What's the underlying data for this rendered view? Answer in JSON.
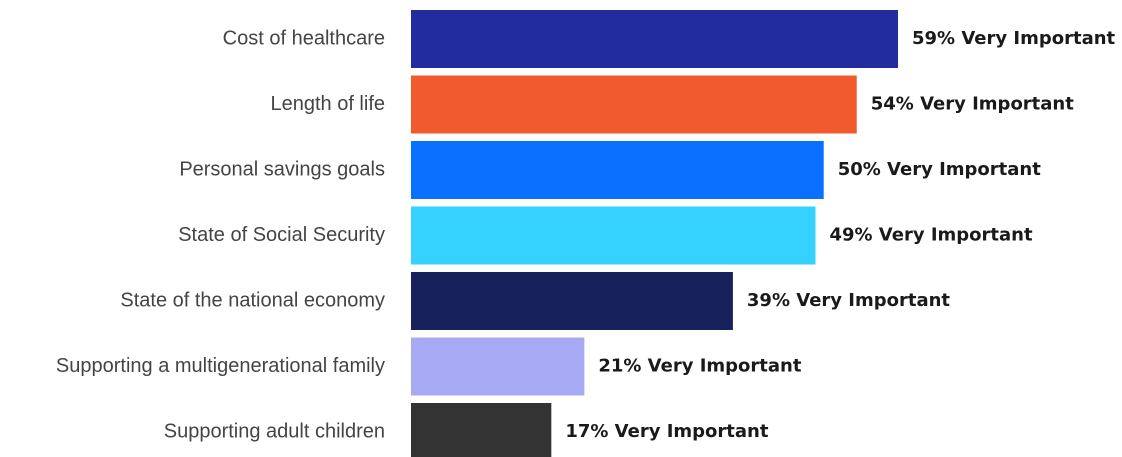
{
  "chart_data": {
    "type": "bar",
    "orientation": "horizontal",
    "categories": [
      "Cost of healthcare",
      "Length of life",
      "Personal savings goals",
      "State of Social Security",
      "State of the national economy",
      "Supporting a multigenerational family",
      "Supporting adult children"
    ],
    "values": [
      59,
      54,
      50,
      49,
      39,
      21,
      17
    ],
    "value_labels": [
      "59% Very Important",
      "54% Very Important",
      "50% Very Important",
      "49% Very Important",
      "39% Very Important",
      "21% Very Important",
      "17% Very Important"
    ],
    "colors": [
      "#232c9e",
      "#f05a2c",
      "#0a70ff",
      "#35d1ff",
      "#17225c",
      "#a5aaf2",
      "#333333"
    ],
    "title": "",
    "xlabel": "",
    "ylabel": "",
    "xlim": [
      0,
      100
    ],
    "grid": false,
    "legend": "none"
  }
}
